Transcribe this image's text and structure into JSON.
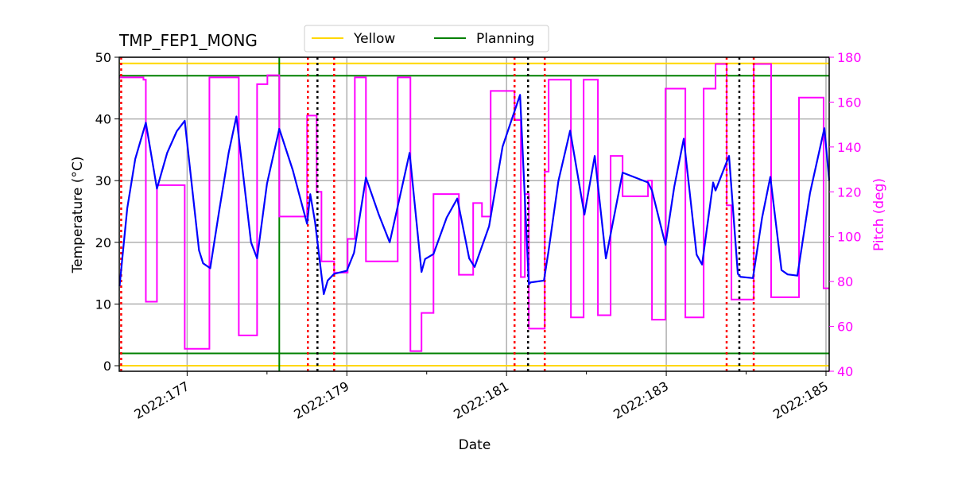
{
  "chart_data": {
    "type": "line",
    "title": "TMP_FEP1_MONG",
    "xlabel": "Date",
    "ylabel": "Temperature ($^\\circ$C)",
    "ylabel_display": "Temperature (°C)",
    "y2label": "Pitch (deg)",
    "xlim": [
      176.15,
      185.04
    ],
    "ylim": [
      -0.9,
      50
    ],
    "y2lim": [
      40,
      180
    ],
    "x_ticks": [
      177,
      179,
      181,
      183,
      185
    ],
    "x_tick_labels": [
      "2022:177",
      "2022:179",
      "2022:181",
      "2022:183",
      "2022:185"
    ],
    "x_minor_ticks": [
      178,
      180,
      182,
      184
    ],
    "y_ticks": [
      0,
      10,
      20,
      30,
      40,
      50
    ],
    "y_tick_labels": [
      "0",
      "10",
      "20",
      "30",
      "40",
      "50"
    ],
    "y2_ticks": [
      40,
      60,
      80,
      100,
      120,
      140,
      160,
      180
    ],
    "y2_tick_labels": [
      "40",
      "60",
      "80",
      "100",
      "120",
      "140",
      "160",
      "180"
    ],
    "grid": true,
    "legend": {
      "placement": "top-center-above",
      "entries": [
        {
          "label": "Yellow",
          "color": "#ffd700"
        },
        {
          "label": "Planning",
          "color": "#008000"
        }
      ]
    },
    "colors": {
      "temperature": "#0000ff",
      "pitch": "#ff00ff",
      "yellow": "#ffd700",
      "planning": "#008000",
      "red_event": "#ff0000",
      "black_event": "#000000",
      "pitch_axis": "#ff00ff"
    },
    "limits": {
      "yellow": [
        0,
        49
      ],
      "planning": [
        2,
        47
      ]
    },
    "series": [
      {
        "name": "Temperature",
        "axis": "left",
        "x": [
          176.154,
          176.25,
          176.35,
          176.483,
          176.622,
          176.75,
          176.87,
          176.97,
          177.149,
          177.2,
          177.289,
          177.4,
          177.52,
          177.617,
          177.8,
          177.876,
          178.0,
          178.154,
          178.323,
          178.502,
          178.542,
          178.602,
          178.711,
          178.76,
          178.841,
          179.0,
          179.09,
          179.239,
          179.4,
          179.537,
          179.786,
          179.935,
          179.98,
          180.085,
          180.25,
          180.383,
          180.532,
          180.6,
          180.781,
          180.95,
          181.169,
          181.279,
          181.3,
          181.468,
          181.527,
          181.65,
          181.796,
          181.975,
          182.104,
          182.244,
          182.453,
          182.771,
          182.821,
          182.99,
          183.1,
          183.219,
          183.38,
          183.448,
          183.587,
          183.617,
          183.786,
          183.896,
          183.93,
          184.085,
          184.2,
          184.303,
          184.443,
          184.52,
          184.642,
          184.8,
          184.98,
          185.04
        ],
        "values": [
          12.9,
          25.5,
          33.5,
          39.4,
          28.7,
          34.5,
          38.0,
          39.7,
          18.7,
          16.6,
          15.8,
          25.0,
          34.5,
          40.4,
          20.0,
          17.4,
          29.5,
          38.4,
          31.7,
          23.0,
          27.8,
          23.3,
          11.6,
          13.8,
          14.9,
          15.4,
          18.3,
          30.5,
          24.5,
          20.0,
          34.5,
          15.2,
          17.3,
          18.1,
          24.0,
          27.1,
          17.4,
          16.0,
          22.6,
          35.5,
          43.9,
          13.2,
          13.5,
          13.8,
          18.7,
          30.0,
          38.1,
          24.5,
          34.0,
          17.4,
          31.3,
          29.7,
          28.4,
          19.6,
          29.0,
          36.8,
          18.0,
          16.4,
          29.7,
          28.4,
          34.0,
          14.9,
          14.4,
          14.2,
          24.0,
          30.6,
          15.5,
          14.8,
          14.6,
          28.0,
          38.5,
          30.0
        ]
      },
      {
        "name": "Pitch",
        "axis": "right",
        "step": true,
        "x": [
          176.154,
          176.453,
          176.483,
          176.622,
          176.97,
          177.279,
          177.647,
          177.876,
          178.005,
          178.154,
          178.502,
          178.622,
          178.682,
          178.841,
          179.01,
          179.1,
          179.239,
          179.637,
          179.796,
          179.935,
          180.085,
          180.403,
          180.582,
          180.692,
          180.801,
          181.1,
          181.179,
          181.229,
          181.279,
          181.478,
          181.527,
          181.806,
          181.965,
          182.144,
          182.303,
          182.453,
          182.771,
          182.821,
          182.99,
          183.239,
          183.468,
          183.617,
          183.756,
          183.816,
          184.095,
          184.313,
          184.662,
          184.97,
          185.04
        ],
        "values": [
          171,
          170,
          71,
          123,
          50,
          171,
          56,
          168,
          172,
          109,
          154,
          120,
          89,
          84,
          99,
          171,
          89,
          171,
          49,
          66,
          119,
          83,
          115,
          109,
          165,
          152,
          82,
          119,
          59,
          129,
          170,
          64,
          170,
          65,
          136,
          118,
          125,
          63,
          166,
          64,
          166,
          177,
          114,
          72,
          177,
          73,
          162,
          77,
          77
        ]
      }
    ],
    "event_lines": {
      "red_dotted": [
        176.174,
        178.512,
        178.841,
        181.1,
        181.478,
        183.756,
        184.095
      ],
      "black_dotted": [
        178.632,
        181.269,
        183.915
      ],
      "green_solid": [
        178.154
      ]
    }
  }
}
